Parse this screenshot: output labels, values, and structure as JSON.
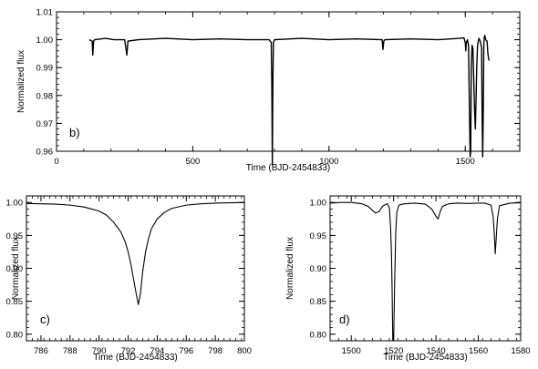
{
  "chart_data": [
    {
      "type": "line",
      "panel_label": "b)",
      "xlabel": "Time (BJD-2454833)",
      "ylabel": "Normalized flux",
      "xlim": [
        0,
        1700
      ],
      "ylim": [
        0.96,
        1.01
      ],
      "x_ticks": [
        0,
        500,
        1000,
        1500
      ],
      "y_ticks": [
        0.96,
        0.97,
        0.98,
        0.99,
        1.0,
        1.01
      ],
      "x_tick_labels": [
        "0",
        "500",
        "1000",
        "1500"
      ],
      "y_tick_labels": [
        "0.96",
        "0.97",
        "0.98",
        "0.99",
        "1.00",
        "1.01"
      ],
      "grid": false,
      "series": [
        {
          "x": [
            120,
            131,
            133,
            136,
            140,
            180,
            210,
            250,
            256,
            258,
            262,
            300,
            400,
            500,
            600,
            700,
            780,
            788,
            790,
            792,
            794,
            796,
            800,
            900,
            1000,
            1100,
            1195,
            1198,
            1201,
            1205,
            1300,
            1400,
            1480,
            1495,
            1500,
            1502,
            1504,
            1508,
            1512,
            1515,
            1518,
            1520,
            1522,
            1525,
            1528,
            1530,
            1534,
            1537,
            1540,
            1542,
            1545,
            1550,
            1555,
            1560,
            1562,
            1564,
            1566,
            1568,
            1570,
            1572,
            1575,
            1580,
            1583,
            1587
          ],
          "y": [
            1.0,
            0.9995,
            0.9945,
            0.9995,
            1.0,
            1.0005,
            1.0,
            1.0,
            0.996,
            0.9945,
            0.9995,
            1.0,
            1.0005,
            1.0,
            1.0003,
            1.0,
            1.0,
            0.999,
            0.985,
            0.955,
            0.985,
            0.999,
            1.0,
            1.0005,
            1.0,
            1.0003,
            1.0,
            0.9965,
            0.9995,
            1.0,
            1.0003,
            1.0,
            1.0005,
            1.0007,
            0.999,
            0.996,
            0.999,
            1.0,
            0.998,
            0.977,
            0.958,
            0.96,
            0.99,
            0.998,
            0.997,
            0.99,
            0.975,
            0.968,
            0.9805,
            0.99,
            0.998,
            1.0005,
            0.9995,
            0.997,
            0.972,
            0.958,
            0.973,
            0.998,
            1.001,
            1.0015,
            1.0,
            0.9995,
            0.995,
            0.9925
          ]
        }
      ]
    },
    {
      "type": "line",
      "panel_label": "c)",
      "xlabel": "Time (BJD-2454833)",
      "ylabel": "Normalized flux",
      "xlim": [
        785,
        800
      ],
      "ylim": [
        0.79,
        1.01
      ],
      "x_ticks": [
        786,
        788,
        790,
        792,
        794,
        796,
        798,
        800
      ],
      "y_ticks": [
        0.8,
        0.85,
        0.9,
        0.95,
        1.0
      ],
      "x_tick_labels": [
        "786",
        "788",
        "790",
        "792",
        "794",
        "796",
        "798",
        "800"
      ],
      "y_tick_labels": [
        "0.80",
        "0.85",
        "0.90",
        "0.95",
        "1.00"
      ],
      "grid": false,
      "series": [
        {
          "x": [
            785.0,
            786.0,
            787.0,
            788.0,
            789.0,
            790.0,
            790.5,
            791.0,
            791.5,
            791.8,
            792.0,
            792.2,
            792.4,
            792.55,
            792.7,
            792.85,
            793.0,
            793.2,
            793.4,
            793.6,
            794.0,
            794.5,
            795.0,
            796.0,
            797.0,
            798.0,
            799.0,
            800.0
          ],
          "y": [
            0.9985,
            0.998,
            0.9975,
            0.996,
            0.993,
            0.987,
            0.981,
            0.97,
            0.955,
            0.94,
            0.925,
            0.905,
            0.88,
            0.862,
            0.845,
            0.862,
            0.895,
            0.925,
            0.945,
            0.96,
            0.975,
            0.985,
            0.991,
            0.996,
            0.998,
            0.999,
            0.9995,
            1.0
          ]
        }
      ]
    },
    {
      "type": "line",
      "panel_label": "d)",
      "xlabel": "Time (BJD-2454833)",
      "ylabel": "Normalized flux",
      "xlim": [
        1490,
        1580
      ],
      "ylim": [
        0.79,
        1.01
      ],
      "x_ticks": [
        1500,
        1520,
        1540,
        1560,
        1580
      ],
      "y_ticks": [
        0.8,
        0.85,
        0.9,
        0.95,
        1.0
      ],
      "x_tick_labels": [
        "1500",
        "1520",
        "1540",
        "1560",
        "1580"
      ],
      "y_tick_labels": [
        "0.80",
        "0.85",
        "0.90",
        "0.95",
        "1.00"
      ],
      "grid": false,
      "series": [
        {
          "x": [
            1490.0,
            1495.0,
            1500.0,
            1505.0,
            1508.0,
            1510.0,
            1511.5,
            1513.0,
            1515.0,
            1517.0,
            1518.0,
            1518.6,
            1519.0,
            1519.3,
            1519.6,
            1520.0,
            1520.5,
            1521.0,
            1521.5,
            1522.5,
            1525.0,
            1530.0,
            1535.0,
            1538.0,
            1540.0,
            1541.0,
            1542.0,
            1543.0,
            1546.0,
            1550.0,
            1555.0,
            1560.0,
            1563.0,
            1566.0,
            1567.0,
            1567.5,
            1568.0,
            1569.0,
            1570.0,
            1575.0,
            1580.0
          ],
          "y": [
            0.999,
            1.0,
            1.0,
            0.998,
            0.994,
            0.988,
            0.984,
            0.986,
            0.995,
            0.998,
            0.992,
            0.96,
            0.92,
            0.865,
            0.79,
            0.79,
            0.88,
            0.955,
            0.985,
            0.996,
            0.998,
            0.999,
            0.9975,
            0.99,
            0.979,
            0.975,
            0.986,
            0.994,
            0.998,
            0.999,
            0.9985,
            0.999,
            0.999,
            0.996,
            0.978,
            0.955,
            0.922,
            0.975,
            0.995,
            0.999,
            0.9995
          ]
        }
      ]
    }
  ]
}
